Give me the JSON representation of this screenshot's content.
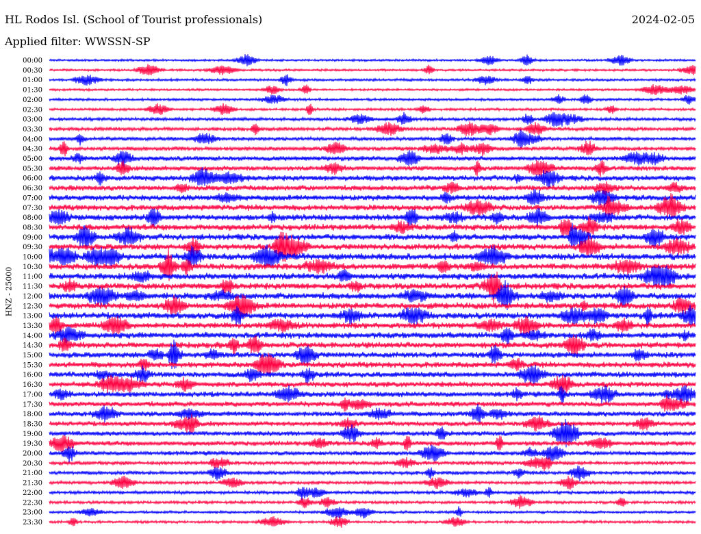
{
  "header": {
    "station": "HL Rodos Isl. (School of Tourist professionals)",
    "date": "2024-02-05",
    "filter": "Applied filter: WWSSN-SP"
  },
  "chart_data": {
    "type": "line",
    "title": "HL Rodos Isl. (School of Tourist professionals)",
    "ylabel": "HNZ - 25000",
    "colors": {
      "even_trace": "#0000ff",
      "odd_trace": "#ff0040"
    },
    "grid": false,
    "rows": [
      {
        "label": "00:00",
        "amplitude": 0.15
      },
      {
        "label": "00:30",
        "amplitude": 0.15
      },
      {
        "label": "01:00",
        "amplitude": 0.2
      },
      {
        "label": "01:30",
        "amplitude": 0.15
      },
      {
        "label": "02:00",
        "amplitude": 0.2
      },
      {
        "label": "02:30",
        "amplitude": 0.2
      },
      {
        "label": "03:00",
        "amplitude": 0.3
      },
      {
        "label": "03:30",
        "amplitude": 0.35
      },
      {
        "label": "04:00",
        "amplitude": 0.35
      },
      {
        "label": "04:30",
        "amplitude": 0.4
      },
      {
        "label": "05:00",
        "amplitude": 0.5
      },
      {
        "label": "05:30",
        "amplitude": 0.5
      },
      {
        "label": "06:00",
        "amplitude": 0.6
      },
      {
        "label": "06:30",
        "amplitude": 0.6
      },
      {
        "label": "07:00",
        "amplitude": 0.65
      },
      {
        "label": "07:30",
        "amplitude": 0.65
      },
      {
        "label": "08:00",
        "amplitude": 0.7
      },
      {
        "label": "08:30",
        "amplitude": 0.7
      },
      {
        "label": "09:00",
        "amplitude": 0.7
      },
      {
        "label": "09:30",
        "amplitude": 0.7
      },
      {
        "label": "10:00",
        "amplitude": 0.75
      },
      {
        "label": "10:30",
        "amplitude": 0.75
      },
      {
        "label": "11:00",
        "amplitude": 0.75
      },
      {
        "label": "11:30",
        "amplitude": 0.75
      },
      {
        "label": "12:00",
        "amplitude": 0.75
      },
      {
        "label": "12:30",
        "amplitude": 0.75
      },
      {
        "label": "13:00",
        "amplitude": 0.75
      },
      {
        "label": "13:30",
        "amplitude": 0.7
      },
      {
        "label": "14:00",
        "amplitude": 0.7
      },
      {
        "label": "14:30",
        "amplitude": 0.7
      },
      {
        "label": "15:00",
        "amplitude": 0.65
      },
      {
        "label": "15:30",
        "amplitude": 0.65
      },
      {
        "label": "16:00",
        "amplitude": 0.65
      },
      {
        "label": "16:30",
        "amplitude": 0.6
      },
      {
        "label": "17:00",
        "amplitude": 0.6
      },
      {
        "label": "17:30",
        "amplitude": 0.55
      },
      {
        "label": "18:00",
        "amplitude": 0.55
      },
      {
        "label": "18:30",
        "amplitude": 0.5
      },
      {
        "label": "19:00",
        "amplitude": 0.5
      },
      {
        "label": "19:30",
        "amplitude": 0.5
      },
      {
        "label": "20:00",
        "amplitude": 0.45
      },
      {
        "label": "20:30",
        "amplitude": 0.35
      },
      {
        "label": "21:00",
        "amplitude": 0.35
      },
      {
        "label": "21:30",
        "amplitude": 0.3
      },
      {
        "label": "22:00",
        "amplitude": 0.3
      },
      {
        "label": "22:30",
        "amplitude": 0.25
      },
      {
        "label": "23:00",
        "amplitude": 0.2
      },
      {
        "label": "23:30",
        "amplitude": 0.2
      }
    ]
  }
}
